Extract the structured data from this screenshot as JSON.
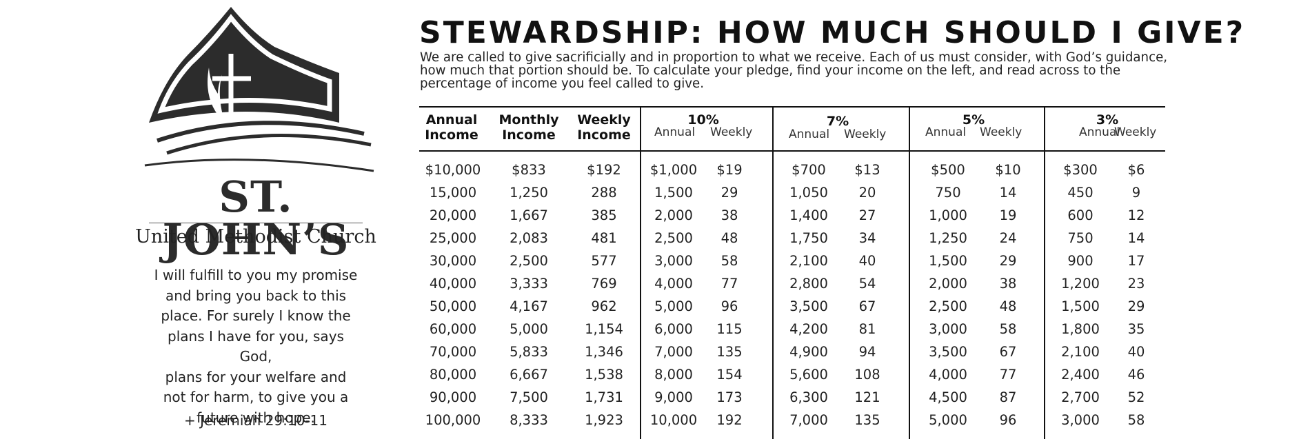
{
  "church": {
    "name": "ST. JOHN’S",
    "subtitle": "United Methodist Church"
  },
  "verse": {
    "lines": [
      "I will fulfill to you my promise",
      "and bring you back to this",
      "place. For surely I know the",
      "plans I have for you, says God,",
      "plans for your welfare and",
      "not for harm, to give you a",
      "future with hope."
    ],
    "reference": "+ Jeremiah 29:10-11"
  },
  "title": "STEWARDSHIP: HOW MUCH SHOULD I GIVE?",
  "intro": "We are called to give sacrificially and in proportion to what we receive. Each of us must consider, with God’s guidance, how much that portion should be. To calculate your pledge, find your income on the left, and read across to the percentage of income you feel called to give.",
  "table": {
    "income_headers": {
      "annual": [
        "Annual",
        "Income"
      ],
      "monthly": [
        "Monthly",
        "Income"
      ],
      "weekly": [
        "Weekly",
        "Income"
      ]
    },
    "groups": [
      {
        "percent": "10%",
        "annual": "Annual",
        "weekly": "Weekly"
      },
      {
        "percent": "7%",
        "annual": "Annual",
        "weekly": "Weekly"
      },
      {
        "percent": "5%",
        "annual": "Annual",
        "weekly": "Weekly"
      },
      {
        "percent": "3%",
        "annual": "Annual",
        "weekly": "Weekly"
      }
    ],
    "rows": [
      [
        "$10,000",
        "$833",
        "$192",
        "$1,000",
        "$19",
        "$700",
        "$13",
        "$500",
        "$10",
        "$300",
        "$6"
      ],
      [
        "15,000",
        "1,250",
        "288",
        "1,500",
        "29",
        "1,050",
        "20",
        "750",
        "14",
        "450",
        "9"
      ],
      [
        "20,000",
        "1,667",
        "385",
        "2,000",
        "38",
        "1,400",
        "27",
        "1,000",
        "19",
        "600",
        "12"
      ],
      [
        "25,000",
        "2,083",
        "481",
        "2,500",
        "48",
        "1,750",
        "34",
        "1,250",
        "24",
        "750",
        "14"
      ],
      [
        "30,000",
        "2,500",
        "577",
        "3,000",
        "58",
        "2,100",
        "40",
        "1,500",
        "29",
        "900",
        "17"
      ],
      [
        "40,000",
        "3,333",
        "769",
        "4,000",
        "77",
        "2,800",
        "54",
        "2,000",
        "38",
        "1,200",
        "23"
      ],
      [
        "50,000",
        "4,167",
        "962",
        "5,000",
        "96",
        "3,500",
        "67",
        "2,500",
        "48",
        "1,500",
        "29"
      ],
      [
        "60,000",
        "5,000",
        "1,154",
        "6,000",
        "115",
        "4,200",
        "81",
        "3,000",
        "58",
        "1,800",
        "35"
      ],
      [
        "70,000",
        "5,833",
        "1,346",
        "7,000",
        "135",
        "4,900",
        "94",
        "3,500",
        "67",
        "2,100",
        "40"
      ],
      [
        "80,000",
        "6,667",
        "1,538",
        "8,000",
        "154",
        "5,600",
        "108",
        "4,000",
        "77",
        "2,400",
        "46"
      ],
      [
        "90,000",
        "7,500",
        "1,731",
        "9,000",
        "173",
        "6,300",
        "121",
        "4,500",
        "87",
        "2,700",
        "52"
      ],
      [
        "100,000",
        "8,333",
        "1,923",
        "10,000",
        "192",
        "7,000",
        "135",
        "5,000",
        "96",
        "3,000",
        "58"
      ]
    ]
  }
}
